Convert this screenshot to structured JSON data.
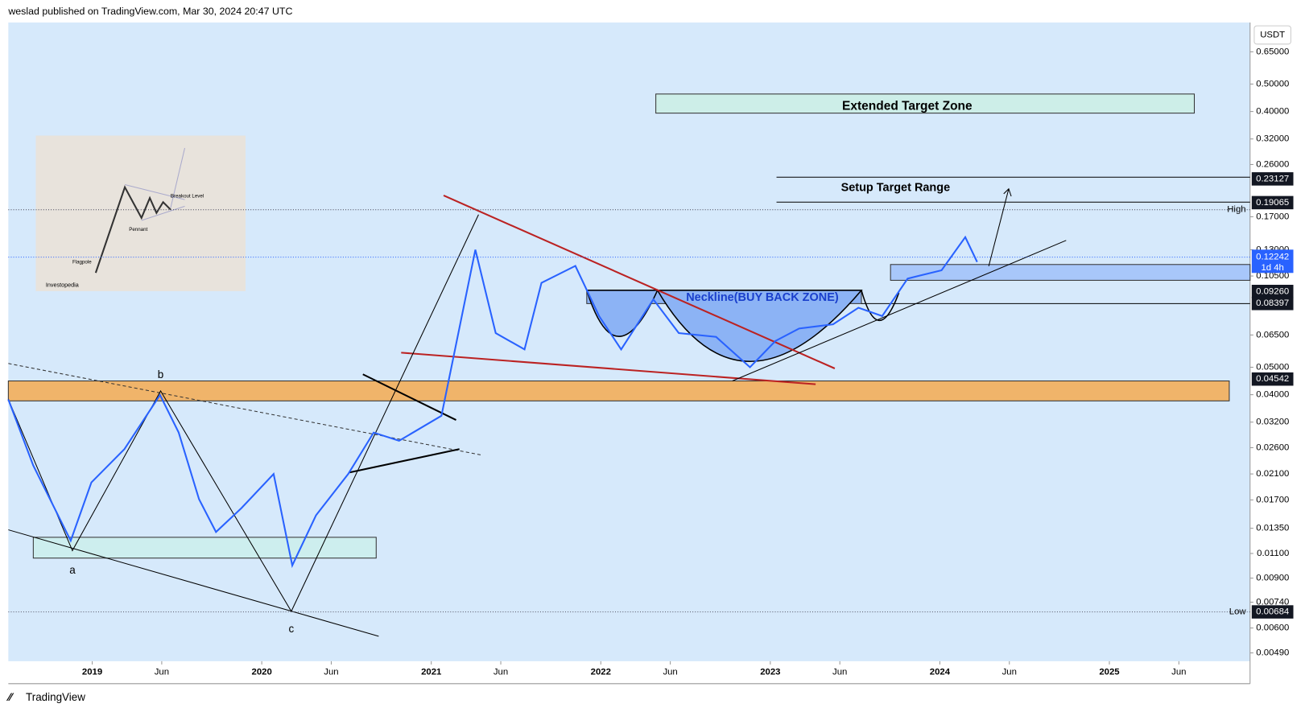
{
  "header": {
    "text": "weslad published on TradingView.com, Mar 30, 2024 20:47 UTC"
  },
  "footer": {
    "brand": "TradingView"
  },
  "chart_data": {
    "type": "line",
    "currency": "USDT",
    "log_scale": true,
    "x": [
      2018.505,
      2018.652,
      2018.873,
      2018.995,
      2019.19,
      2019.4,
      2019.51,
      2019.63,
      2019.73,
      2019.88,
      2020.07,
      2020.18,
      2020.32,
      2020.51,
      2020.66,
      2020.81,
      2021.06,
      2021.13,
      2021.26,
      2021.38,
      2021.55,
      2021.65,
      2021.85,
      2021.99,
      2022.12,
      2022.31,
      2022.46,
      2022.68,
      2022.88,
      2023.03,
      2023.17,
      2023.37,
      2023.52,
      2023.66,
      2023.81,
      2024.01,
      2024.15,
      2024.22
    ],
    "series": [
      {
        "color": "#2962ff",
        "values": [
          0.0385,
          0.0225,
          0.0122,
          0.0196,
          0.0257,
          0.0399,
          0.0294,
          0.0171,
          0.0131,
          0.0159,
          0.021,
          0.00998,
          0.015,
          0.021,
          0.0294,
          0.0275,
          0.0337,
          0.054,
          0.13,
          0.066,
          0.0578,
          0.0993,
          0.114,
          0.0758,
          0.0578,
          0.0868,
          0.066,
          0.064,
          0.05,
          0.0619,
          0.0685,
          0.0709,
          0.0811,
          0.0758,
          0.1028,
          0.11,
          0.144,
          0.1177
        ]
      }
    ],
    "xlim": [
      2018.505,
      2025.83
    ],
    "ylim": [
      0.00458,
      0.825
    ],
    "xticks": [
      {
        "value": 2019,
        "label": "2019"
      },
      {
        "value": 2019.41,
        "label": "Jun"
      },
      {
        "value": 2020,
        "label": "2020"
      },
      {
        "value": 2020.41,
        "label": "Jun"
      },
      {
        "value": 2021,
        "label": "2021"
      },
      {
        "value": 2021.41,
        "label": "Jun"
      },
      {
        "value": 2022,
        "label": "2022"
      },
      {
        "value": 2022.41,
        "label": "Jun"
      },
      {
        "value": 2023,
        "label": "2023"
      },
      {
        "value": 2023.41,
        "label": "Jun"
      },
      {
        "value": 2024,
        "label": "2024"
      },
      {
        "value": 2024.41,
        "label": "Jun"
      },
      {
        "value": 2025,
        "label": "2025"
      },
      {
        "value": 2025.41,
        "label": "Jun"
      }
    ],
    "yticks": [
      {
        "value": 0.65,
        "label": "0.65000"
      },
      {
        "value": 0.5,
        "label": "0.50000"
      },
      {
        "value": 0.4,
        "label": "0.40000"
      },
      {
        "value": 0.32,
        "label": "0.32000"
      },
      {
        "value": 0.26,
        "label": "0.26000"
      },
      {
        "value": 0.17,
        "label": "0.17000"
      },
      {
        "value": 0.13,
        "label": "0.13000"
      },
      {
        "value": 0.105,
        "label": "0.10500"
      },
      {
        "value": 0.065,
        "label": "0.06500"
      },
      {
        "value": 0.05,
        "label": "0.05000"
      },
      {
        "value": 0.04,
        "label": "0.04000"
      },
      {
        "value": 0.032,
        "label": "0.03200"
      },
      {
        "value": 0.026,
        "label": "0.02600"
      },
      {
        "value": 0.021,
        "label": "0.02100"
      },
      {
        "value": 0.017,
        "label": "0.01700"
      },
      {
        "value": 0.0135,
        "label": "0.01350"
      },
      {
        "value": 0.011,
        "label": "0.01100"
      },
      {
        "value": 0.009,
        "label": "0.00900"
      },
      {
        "value": 0.0074,
        "label": "0.00740"
      },
      {
        "value": 0.006,
        "label": "0.00600"
      },
      {
        "value": 0.0049,
        "label": "0.00490"
      }
    ],
    "price_tags": [
      0.23127,
      0.19065,
      {
        "value": 0.0926,
        "label": "0.09260"
      },
      0.08397,
      0.04542,
      0.00684
    ],
    "last_price": {
      "value": 0.12242,
      "interval": "1d 4h"
    },
    "levels": [
      {
        "label": "High",
        "value": 0.18
      },
      {
        "label": "Low",
        "value": 0.00684
      }
    ],
    "annotations": {
      "extended_target": "Extended Target Zone",
      "setup_target": "Setup Target Range",
      "neckline": "Neckline(BUY BACK ZONE)",
      "point_a": "a",
      "point_b": "b",
      "point_c": "c"
    },
    "inset": {
      "breakout": "Breakout Level",
      "pennant": "Pennant",
      "flagpole": "Flagpole",
      "source": "Investopedia"
    }
  }
}
